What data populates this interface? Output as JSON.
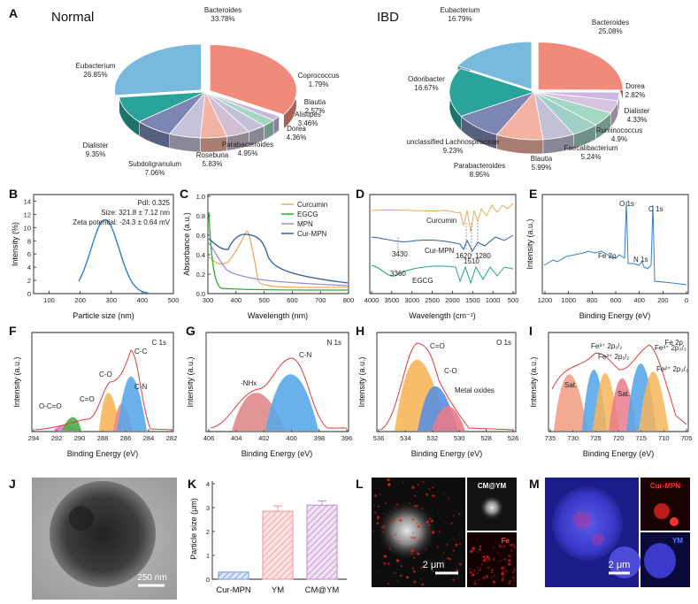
{
  "panels": {
    "a": {
      "letter": "A",
      "normal_title": "Normal",
      "ibd_title": "IBD"
    },
    "b": {
      "letter": "B",
      "pdi": "PdI: 0.325",
      "size": "Size: 321.8 ± 7.12 nm",
      "zeta": "Zeta potential: -24.3 ± 0.64 mV"
    },
    "c": {
      "letter": "C"
    },
    "d": {
      "letter": "D",
      "curcumin": "Curcumin",
      "curmpn": "Cur-MPN",
      "egcg": "EGCG",
      "p3430": "3430",
      "p3360": "3360",
      "p1620": "1620",
      "p1510": "1510",
      "p1280": "1280"
    },
    "e": {
      "letter": "E",
      "o1s": "O 1s",
      "c1s": "C 1s",
      "fe2p": "Fe 2p",
      "n1s": "N 1s"
    },
    "f": {
      "letter": "F",
      "title": "C 1s",
      "oco": "O-C=O",
      "co_d": "C=O",
      "co_s": "C-O",
      "cn": "C-N",
      "cc": "C-C"
    },
    "g": {
      "letter": "G",
      "title": "N 1s",
      "nhx": "-NHx",
      "cn": "C-N"
    },
    "h": {
      "letter": "H",
      "title": "O 1s",
      "co_d": "C=O",
      "co_s": "C-O",
      "metal": "Metal oxides"
    },
    "i": {
      "letter": "I",
      "title": "Fe 2p",
      "sat1": "Sat.",
      "sat2": "Sat.",
      "l1": "Fe³⁺ 2p₁/₂",
      "l2": "Fe²⁺ 2p₁/₂",
      "l3": "Fe³⁺ 2p₃/₂",
      "l4": "Fe²⁺ 2p₃/₂"
    },
    "j": {
      "letter": "J",
      "scale": "250 nm"
    },
    "k": {
      "letter": "K"
    },
    "l": {
      "letter": "L",
      "scale": "2 μm",
      "inset1": "CM@YM",
      "inset2": "Fe"
    },
    "m": {
      "letter": "M",
      "scale": "2 μm",
      "inset1": "Cur-MPN",
      "inset2": "YM"
    }
  },
  "chart_data": [
    {
      "id": "pie-normal",
      "type": "pie",
      "title": "Normal",
      "labels": [
        "Bacteroides",
        "Coprococcus",
        "Blautia",
        "Alistipes",
        "Dorea",
        "Parabacteroides",
        "Roseburia",
        "Subdoligranulum",
        "Dialister",
        "Eubacterium"
      ],
      "values": [
        "33.78%",
        "1.79%",
        "2.57%",
        "3.46%",
        "4.36%",
        "4.95%",
        "5.83%",
        "7.06%",
        "9.35%",
        "26.85%"
      ],
      "colors": [
        "#f08a7a",
        "#c9b8e0",
        "#a5d8c2",
        "#c4c0d8",
        "#d2bfd2",
        "#f3b3a2",
        "#c7c2dc",
        "#7d86b3",
        "#2aa39b",
        "#7ab9de"
      ]
    },
    {
      "id": "pie-ibd",
      "type": "pie",
      "title": "IBD",
      "labels": [
        "Bacteroides",
        "Dorea",
        "Dialister",
        "Ruminococcus",
        "Faecalibacterium",
        "Blautia",
        "Parabacteroides",
        "unclassified Lachnospiraceae",
        "Odoribacter",
        "Eubacterium"
      ],
      "values": [
        "25.08%",
        "2.82%",
        "4.33%",
        "4.9%",
        "5.24%",
        "5.99%",
        "8.95%",
        "9.23%",
        "16.67%",
        "16.79%"
      ],
      "colors": [
        "#f08a7a",
        "#c9b8e0",
        "#d9c1e0",
        "#a5d8c2",
        "#9fcfc7",
        "#c4c0d8",
        "#f3b3a2",
        "#7d86b3",
        "#2aa39b",
        "#7ab9de"
      ]
    },
    {
      "id": "dls",
      "type": "line",
      "xlabel": "Particle size (nm)",
      "ylabel": "Intensity (%)",
      "xlim": [
        50,
        500
      ],
      "ylim": [
        0,
        15
      ],
      "xticks": [
        "100",
        "200",
        "300",
        "400",
        "500"
      ],
      "yticks": [
        "0",
        "2",
        "4",
        "6",
        "8",
        "10",
        "12",
        "14"
      ],
      "peak_x": 280,
      "peak_y": 11.2,
      "range": [
        195,
        420
      ]
    },
    {
      "id": "uvvis",
      "type": "line",
      "xlabel": "Wavelength (nm)",
      "ylabel": "Absorbance (a.u.)",
      "xlim": [
        300,
        800
      ],
      "ylim": [
        0,
        1.0
      ],
      "xticks": [
        "300",
        "400",
        "500",
        "600",
        "700",
        "800"
      ],
      "yticks": [
        "0.0",
        "0.2",
        "0.4",
        "0.6",
        "0.8",
        "1.0"
      ],
      "series": [
        {
          "name": "Curcumin",
          "color": "#f2a75c"
        },
        {
          "name": "EGCG",
          "color": "#2bb02b"
        },
        {
          "name": "MPN",
          "color": "#9a8cd8"
        },
        {
          "name": "Cur-MPN",
          "color": "#2f5d9b"
        }
      ]
    },
    {
      "id": "ftir",
      "type": "line",
      "xlabel": "Wavelength (cm⁻¹)",
      "xticks": [
        "4000",
        "3500",
        "3000",
        "2500",
        "2000",
        "1500",
        "1000",
        "500"
      ]
    },
    {
      "id": "xps-survey",
      "type": "line",
      "xlabel": "Binding Energy (eV)",
      "ylabel": "Intensity (a.u.)",
      "xticks": [
        "1200",
        "1000",
        "800",
        "600",
        "400",
        "200",
        "0"
      ]
    },
    {
      "id": "xps-c1s",
      "type": "line",
      "xlabel": "Binding Energy (eV)",
      "ylabel": "Intensity (a.u.)",
      "xticks": [
        "294",
        "292",
        "290",
        "288",
        "286",
        "284",
        "282"
      ]
    },
    {
      "id": "xps-n1s",
      "type": "line",
      "xlabel": "Binding Energy (eV)",
      "ylabel": "Intensity (a.u.)",
      "xticks": [
        "406",
        "404",
        "402",
        "400",
        "398",
        "396"
      ]
    },
    {
      "id": "xps-o1s",
      "type": "line",
      "xlabel": "Binding Energy (eV)",
      "ylabel": "Intensity (a.u.)",
      "xticks": [
        "536",
        "534",
        "532",
        "530",
        "528",
        "526"
      ]
    },
    {
      "id": "xps-fe2p",
      "type": "line",
      "xlabel": "Binding Energy (eV)",
      "ylabel": "Intensity (a.u.)",
      "xticks": [
        "735",
        "730",
        "725",
        "720",
        "715",
        "710",
        "705"
      ]
    },
    {
      "id": "size-bar",
      "type": "bar",
      "ylabel": "Particle size (μm)",
      "categories": [
        "Cur-MPN",
        "YM",
        "CM@YM"
      ],
      "values": [
        0.3,
        2.85,
        3.1
      ],
      "errors": [
        0.0,
        0.22,
        0.18
      ],
      "ylim": [
        0,
        4
      ],
      "yticks": [
        "0",
        "1",
        "2",
        "3",
        "4"
      ],
      "colors": [
        "#7fa6e0",
        "#f4a3a3",
        "#c79ad6"
      ]
    }
  ]
}
